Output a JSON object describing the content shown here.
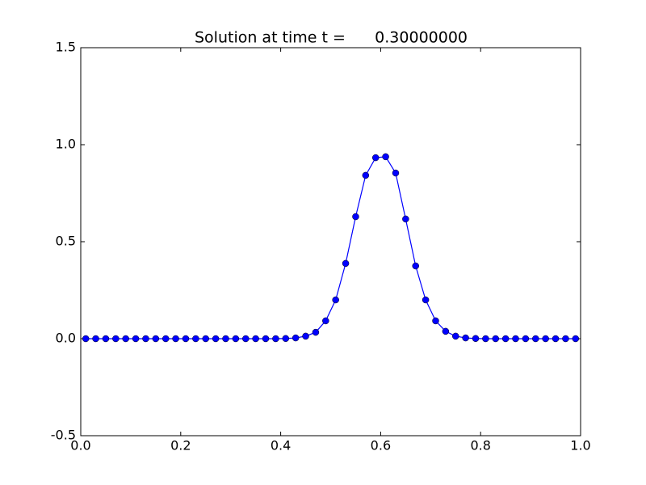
{
  "chart_data": {
    "type": "line",
    "title": "Solution at time t =      0.30000000",
    "x": [
      0.01,
      0.03,
      0.05,
      0.07,
      0.09,
      0.11,
      0.13,
      0.15,
      0.17,
      0.19,
      0.21,
      0.23,
      0.25,
      0.27,
      0.29,
      0.31,
      0.33,
      0.35,
      0.37,
      0.39,
      0.41,
      0.43,
      0.45,
      0.47,
      0.49,
      0.51,
      0.53,
      0.55,
      0.57,
      0.59,
      0.61,
      0.63,
      0.65,
      0.67,
      0.69,
      0.71,
      0.73,
      0.75,
      0.77,
      0.79,
      0.81,
      0.83,
      0.85,
      0.87,
      0.89,
      0.91,
      0.93,
      0.95,
      0.97,
      0.99
    ],
    "series": [
      {
        "color": "#0000ff",
        "values": [
          0,
          0,
          0,
          0,
          0,
          0,
          0,
          0,
          0,
          0,
          0,
          0,
          0,
          0,
          0,
          0,
          0,
          0,
          0,
          0,
          0.001,
          0.004,
          0.013,
          0.033,
          0.092,
          0.2,
          0.388,
          0.629,
          0.842,
          0.933,
          0.938,
          0.854,
          0.617,
          0.375,
          0.2,
          0.092,
          0.038,
          0.013,
          0.004,
          0.001,
          0,
          0,
          0,
          0,
          0,
          0,
          0,
          0,
          0,
          0
        ]
      }
    ],
    "xlim": [
      0,
      1
    ],
    "ylim": [
      -0.5,
      1.5
    ],
    "xticks": [
      {
        "value": 0,
        "label": "0.0"
      },
      0.2,
      0.4,
      0.6,
      0.8,
      {
        "value": 1,
        "label": "1.0"
      }
    ],
    "yticks": [
      -0.5,
      {
        "value": 0,
        "label": "0.0"
      },
      0.5,
      {
        "value": 1,
        "label": "1.0"
      },
      1.5
    ],
    "grid": false
  }
}
